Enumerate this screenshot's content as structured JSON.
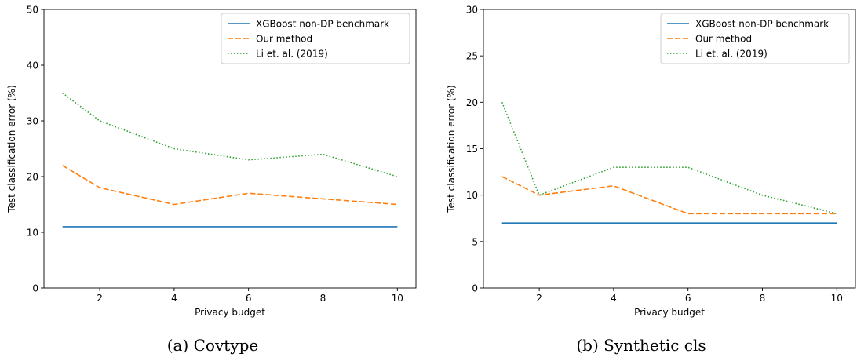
{
  "chart_data": [
    {
      "type": "line",
      "caption": "(a) Covtype",
      "xlabel": "Privacy budget",
      "ylabel": "Test classification error (%)",
      "xlim": [
        0.5,
        10.5
      ],
      "ylim": [
        0,
        50
      ],
      "xticks": [
        2,
        4,
        6,
        8,
        10
      ],
      "yticks": [
        0,
        10,
        20,
        30,
        40,
        50
      ],
      "legend_position": "top-right",
      "grid": false,
      "series": [
        {
          "name": "XGBoost non-DP benchmark",
          "color": "#1f77b4",
          "style": "solid",
          "x": [
            1,
            2,
            4,
            6,
            8,
            10
          ],
          "y": [
            11,
            11,
            11,
            11,
            11,
            11
          ]
        },
        {
          "name": "Our method",
          "color": "#ff7f0e",
          "style": "dashed",
          "x": [
            1,
            2,
            4,
            6,
            8,
            10
          ],
          "y": [
            22,
            18,
            15,
            17,
            16,
            15
          ]
        },
        {
          "name": "Li et. al. (2019)",
          "color": "#2ca02c",
          "style": "dotted",
          "x": [
            1,
            2,
            4,
            6,
            8,
            10
          ],
          "y": [
            35,
            30,
            25,
            23,
            24,
            20
          ]
        }
      ]
    },
    {
      "type": "line",
      "caption": "(b) Synthetic cls",
      "xlabel": "Privacy budget",
      "ylabel": "Test classification error (%)",
      "xlim": [
        0.5,
        10.5
      ],
      "ylim": [
        0,
        30
      ],
      "xticks": [
        2,
        4,
        6,
        8,
        10
      ],
      "yticks": [
        0,
        5,
        10,
        15,
        20,
        25,
        30
      ],
      "legend_position": "top-right",
      "grid": false,
      "series": [
        {
          "name": "XGBoost non-DP benchmark",
          "color": "#1f77b4",
          "style": "solid",
          "x": [
            1,
            2,
            4,
            6,
            8,
            10
          ],
          "y": [
            7,
            7,
            7,
            7,
            7,
            7
          ]
        },
        {
          "name": "Our method",
          "color": "#ff7f0e",
          "style": "dashed",
          "x": [
            1,
            2,
            4,
            6,
            8,
            10
          ],
          "y": [
            12,
            10,
            11,
            8,
            8,
            8
          ]
        },
        {
          "name": "Li et. al. (2019)",
          "color": "#2ca02c",
          "style": "dotted",
          "x": [
            1,
            2,
            4,
            6,
            8,
            10
          ],
          "y": [
            20,
            10,
            13,
            13,
            10,
            8
          ]
        }
      ]
    }
  ]
}
